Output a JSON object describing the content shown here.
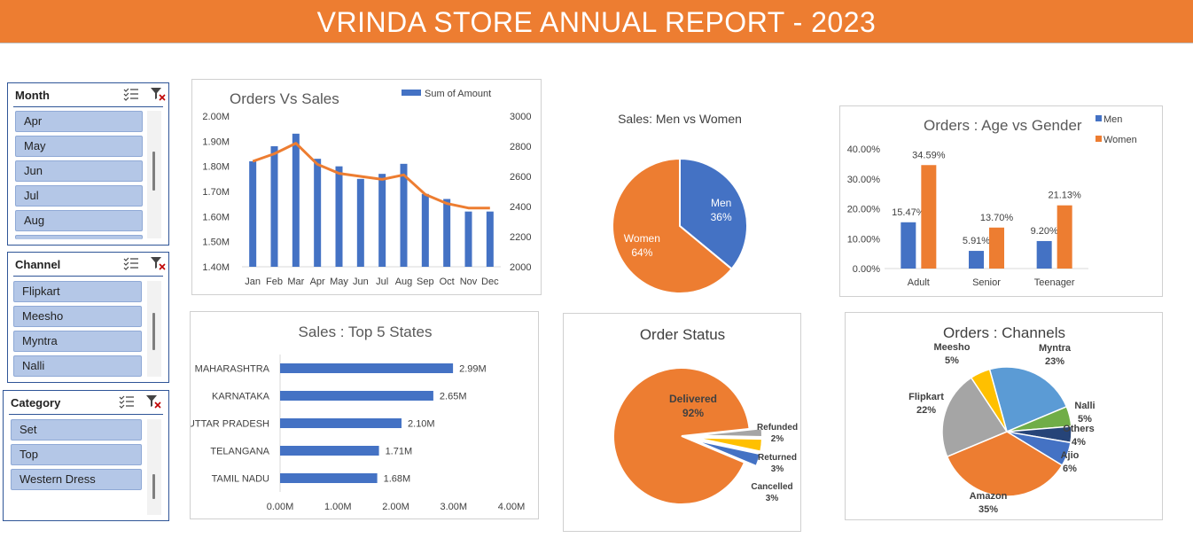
{
  "header": {
    "title": "VRINDA STORE ANNUAL REPORT - 2023"
  },
  "colors": {
    "banner": "#ED7D31",
    "blue": "#4472C4",
    "orange": "#ED7D31",
    "slicer_item": "#B4C7E7"
  },
  "slicers": [
    {
      "title": "Month",
      "items": [
        "Apr",
        "May",
        "Jun",
        "Jul",
        "Aug"
      ]
    },
    {
      "title": "Channel",
      "items": [
        "Flipkart",
        "Meesho",
        "Myntra",
        "Nalli"
      ]
    },
    {
      "title": "Category",
      "items": [
        "Set",
        "Top",
        "Western Dress"
      ]
    }
  ],
  "chart_data": [
    {
      "id": "orders_vs_sales",
      "type": "bar",
      "title": "Orders Vs Sales",
      "categories": [
        "Jan",
        "Feb",
        "Mar",
        "Apr",
        "May",
        "Jun",
        "Jul",
        "Aug",
        "Sep",
        "Oct",
        "Nov",
        "Dec"
      ],
      "series": [
        {
          "name": "Sum of Amount",
          "type": "bar",
          "axis": "left",
          "values": [
            1.82,
            1.88,
            1.93,
            1.83,
            1.8,
            1.75,
            1.77,
            1.81,
            1.69,
            1.67,
            1.62,
            1.62
          ]
        },
        {
          "type": "line",
          "axis": "right",
          "values": [
            2700,
            2750,
            2820,
            2680,
            2620,
            2600,
            2580,
            2610,
            2480,
            2420,
            2390,
            2390
          ]
        }
      ],
      "ylim": [
        1.4,
        2.0
      ],
      "y_ticks": [
        "1.40M",
        "1.50M",
        "1.60M",
        "1.70M",
        "1.80M",
        "1.90M",
        "2.00M"
      ],
      "y2lim": [
        2000,
        3000
      ],
      "y2_ticks": [
        "2000",
        "2200",
        "2400",
        "2600",
        "2800",
        "3000"
      ],
      "legend": "top-right"
    },
    {
      "id": "men_vs_women",
      "type": "pie",
      "title": "Sales: Men vs Women",
      "labels": [
        "Men",
        "Women"
      ],
      "values": [
        36,
        64
      ],
      "value_labels": [
        "36%",
        "64%"
      ]
    },
    {
      "id": "age_vs_gender",
      "type": "bar",
      "title": "Orders : Age vs Gender",
      "categories": [
        "Adult",
        "Senior",
        "Teenager"
      ],
      "series": [
        {
          "name": "Men",
          "values": [
            15.47,
            5.91,
            9.2
          ],
          "labels": [
            "15.47%",
            "5.91%",
            "9.20%"
          ]
        },
        {
          "name": "Women",
          "values": [
            34.59,
            13.7,
            21.13
          ],
          "labels": [
            "34.59%",
            "13.70%",
            "21.13%"
          ]
        }
      ],
      "ylim": [
        0,
        40
      ],
      "y_ticks": [
        "0.00%",
        "10.00%",
        "20.00%",
        "30.00%",
        "40.00%"
      ],
      "legend": "top-right"
    },
    {
      "id": "top_states",
      "type": "bar",
      "orientation": "horizontal",
      "title": "Sales : Top 5 States",
      "categories": [
        "MAHARASHTRA",
        "KARNATAKA",
        "UTTAR PRADESH",
        "TELANGANA",
        "TAMIL NADU"
      ],
      "values": [
        2.99,
        2.65,
        2.1,
        1.71,
        1.68
      ],
      "value_labels": [
        "2.99M",
        "2.65M",
        "2.10M",
        "1.71M",
        "1.68M"
      ],
      "xlim": [
        0,
        4
      ],
      "x_ticks": [
        "0.00M",
        "1.00M",
        "2.00M",
        "3.00M",
        "4.00M"
      ]
    },
    {
      "id": "order_status",
      "type": "pie",
      "title": "Order Status",
      "labels": [
        "Delivered",
        "Refunded",
        "Returned",
        "Cancelled"
      ],
      "values": [
        92,
        2,
        3,
        3
      ],
      "value_labels": [
        "92%",
        "2%",
        "3%",
        "3%"
      ]
    },
    {
      "id": "channels",
      "type": "pie",
      "title": "Orders : Channels",
      "labels": [
        "Myntra",
        "Nalli",
        "Others",
        "Ajio",
        "Amazon",
        "Flipkart",
        "Meesho"
      ],
      "values": [
        23,
        5,
        4,
        6,
        35,
        22,
        5
      ],
      "value_labels": [
        "23%",
        "5%",
        "4%",
        "6%",
        "35%",
        "22%",
        "5%"
      ],
      "colors": [
        "#5B9BD5",
        "#70AD47",
        "#264478",
        "#4472C4",
        "#ED7D31",
        "#A5A5A5",
        "#FFC000"
      ]
    }
  ]
}
